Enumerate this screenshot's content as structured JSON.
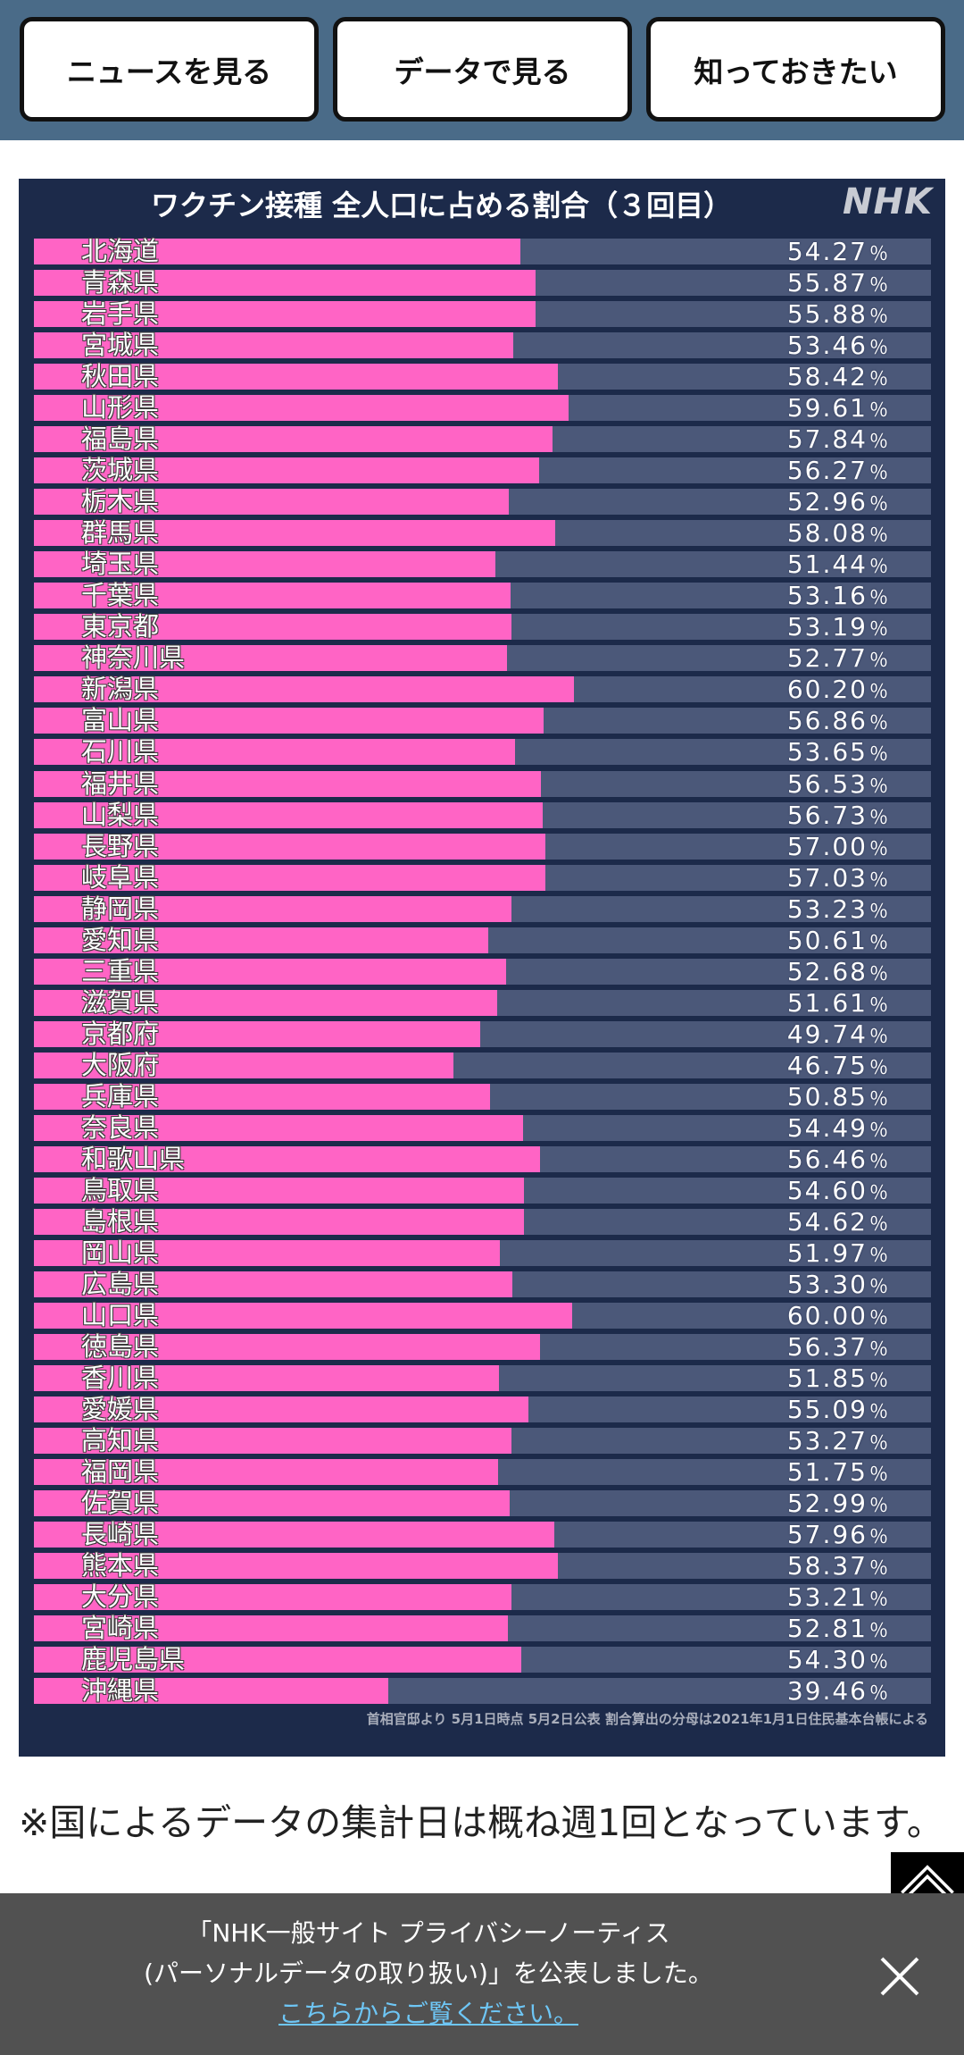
{
  "nav": {
    "buttons": [
      {
        "label": "ニュースを見る"
      },
      {
        "label": "データで見る"
      },
      {
        "label": "知っておきたい"
      }
    ]
  },
  "chart_card": {
    "logo": "NHK",
    "source_note": "首相官邸より 5月1日時点 5月2日公表 割合算出の分母は2021年1月1日住民基本台帳による"
  },
  "chart_data": {
    "type": "bar",
    "orientation": "horizontal",
    "title": "ワクチン接種 全人口に占める割合（３回目）",
    "xlabel": "",
    "ylabel": "",
    "categories": [
      "北海道",
      "青森県",
      "岩手県",
      "宮城県",
      "秋田県",
      "山形県",
      "福島県",
      "茨城県",
      "栃木県",
      "群馬県",
      "埼玉県",
      "千葉県",
      "東京都",
      "神奈川県",
      "新潟県",
      "富山県",
      "石川県",
      "福井県",
      "山梨県",
      "長野県",
      "岐阜県",
      "静岡県",
      "愛知県",
      "三重県",
      "滋賀県",
      "京都府",
      "大阪府",
      "兵庫県",
      "奈良県",
      "和歌山県",
      "鳥取県",
      "島根県",
      "岡山県",
      "広島県",
      "山口県",
      "徳島県",
      "香川県",
      "愛媛県",
      "高知県",
      "福岡県",
      "佐賀県",
      "長崎県",
      "熊本県",
      "大分県",
      "宮崎県",
      "鹿児島県",
      "沖縄県"
    ],
    "values": [
      54.27,
      55.87,
      55.88,
      53.46,
      58.42,
      59.61,
      57.84,
      56.27,
      52.96,
      58.08,
      51.44,
      53.16,
      53.19,
      52.77,
      60.2,
      56.86,
      53.65,
      56.53,
      56.73,
      57.0,
      57.03,
      53.23,
      50.61,
      52.68,
      51.61,
      49.74,
      46.75,
      50.85,
      54.49,
      56.46,
      54.6,
      54.62,
      51.97,
      53.3,
      60.0,
      56.37,
      51.85,
      55.09,
      53.27,
      51.75,
      52.99,
      57.96,
      58.37,
      53.21,
      52.81,
      54.3,
      39.46
    ],
    "value_suffix": "％",
    "xlim": [
      0,
      100
    ],
    "grid": false,
    "legend": "none",
    "colors": {
      "bar": "#ff64c5",
      "track": "#4b5879",
      "background": "#1c2a4a"
    }
  },
  "note": {
    "text": "※国によるデータの集計日は概ね週1回となっています。"
  },
  "scroll_top": {
    "icon": "chevron-up-icon"
  },
  "privacy_banner": {
    "lines": [
      "「NHK一般サイト プライバシーノーティス",
      "(パーソナルデータの取り扱い)」を公表しました。"
    ],
    "link_text": "こちらからご覧ください。",
    "close_icon": "close-icon"
  },
  "theme": {
    "nav_bar": "#4a6b88",
    "banner": "#515151",
    "link": "#6ec6f5"
  }
}
